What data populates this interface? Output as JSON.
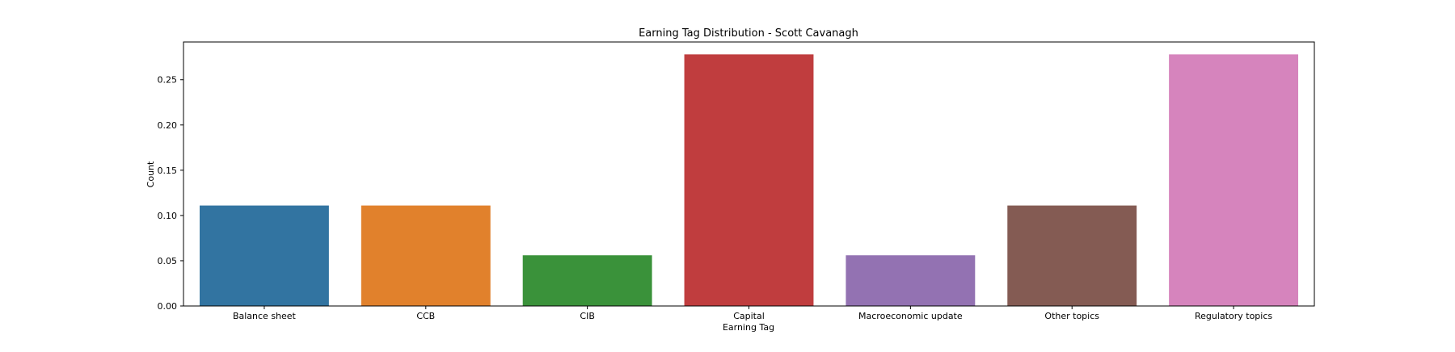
{
  "chart_data": {
    "type": "bar",
    "title": "Earning Tag Distribution - Scott Cavanagh",
    "xlabel": "Earning Tag",
    "ylabel": "Count",
    "categories": [
      "Balance sheet",
      "CCB",
      "CIB",
      "Capital",
      "Macroeconomic update",
      "Other topics",
      "Regulatory topics"
    ],
    "values": [
      0.111,
      0.111,
      0.056,
      0.278,
      0.056,
      0.111,
      0.278
    ],
    "colors": [
      "#3274a1",
      "#e1812c",
      "#3a923a",
      "#c03d3e",
      "#9372b2",
      "#845b53",
      "#d684bd"
    ],
    "ylim": [
      0,
      0.2917
    ],
    "yticks": [
      0.0,
      0.05,
      0.1,
      0.15,
      0.2,
      0.25
    ],
    "ytick_labels": [
      "0.00",
      "0.05",
      "0.10",
      "0.15",
      "0.20",
      "0.25"
    ],
    "grid": false,
    "legend": "none"
  }
}
